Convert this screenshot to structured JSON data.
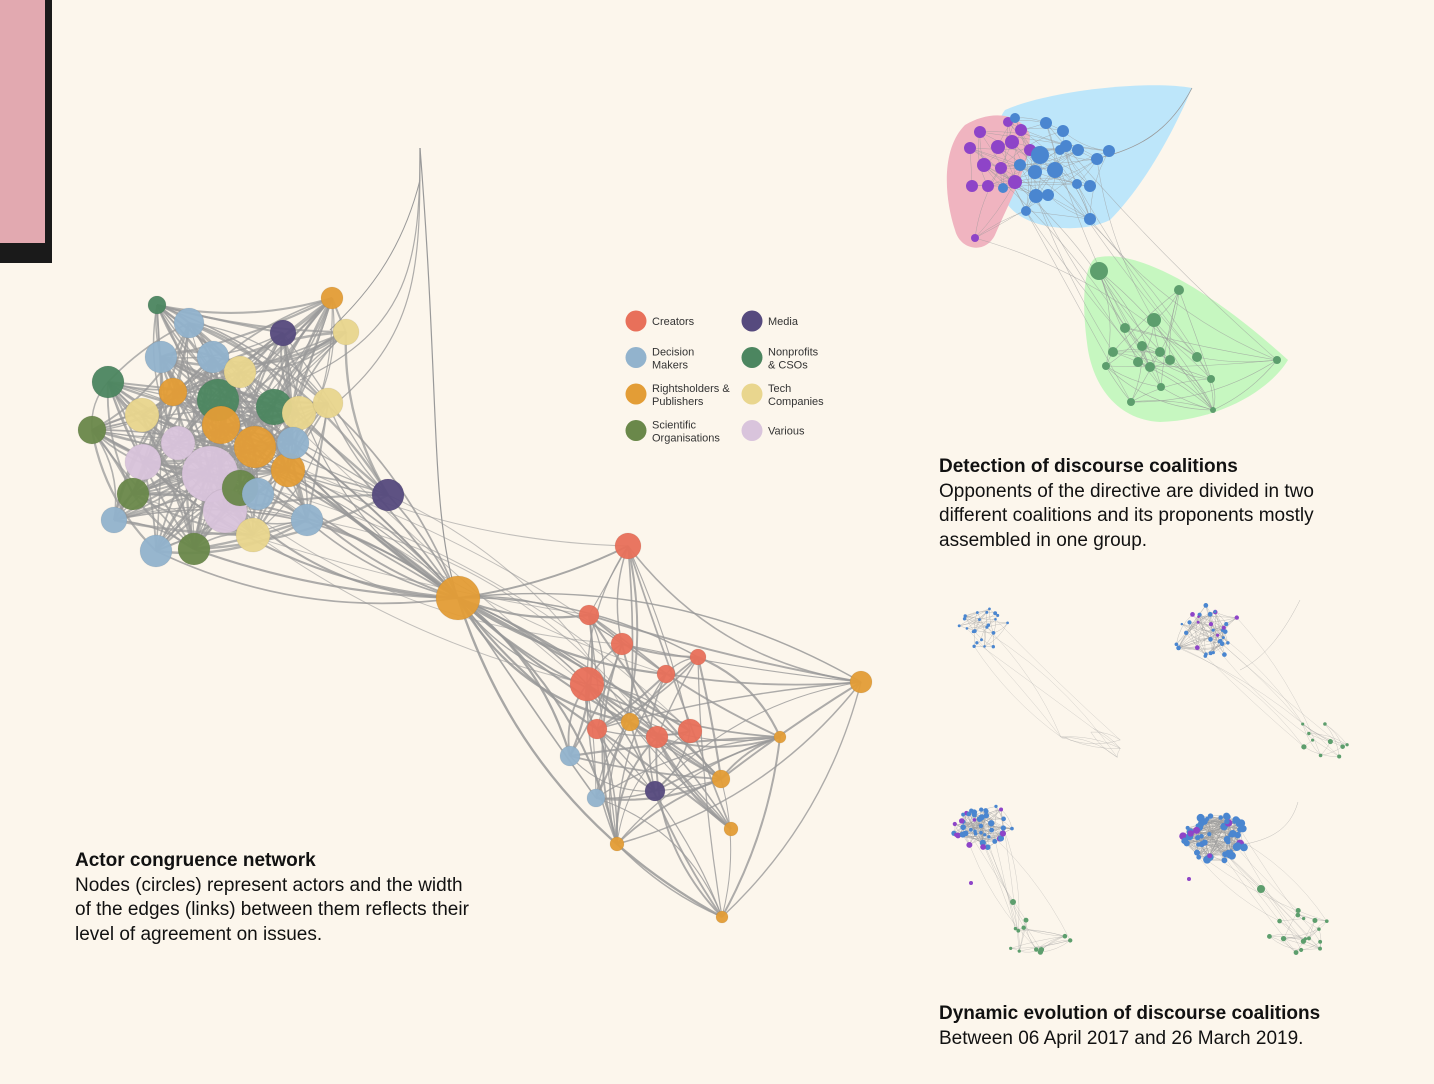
{
  "colors": {
    "background": "#fcf6ec",
    "tab": "#e2a9b0",
    "edge": "#999999",
    "creators": "#e8705a",
    "decision_makers": "#92b3cd",
    "rightsholders": "#e39d36",
    "scientific": "#6a884a",
    "media": "#564a7e",
    "nonprofits": "#4c8660",
    "tech": "#e9d68e",
    "various": "#d9c4dc",
    "hull_pink": "#f0b4c0",
    "hull_blue": "#bde6fa",
    "hull_green": "#c6f7c0",
    "node_purple": "#8e44c8",
    "node_blue": "#4a86d0",
    "node_green": "#5d9e6d"
  },
  "legend": [
    {
      "label": "Creators",
      "color": "#e8705a"
    },
    {
      "label": "Media",
      "color": "#564a7e"
    },
    {
      "label": "Decision\nMakers",
      "color": "#92b3cd"
    },
    {
      "label": "Nonprofits\n& CSOs",
      "color": "#4c8660"
    },
    {
      "label": "Rightsholders &\nPublishers",
      "color": "#e39d36"
    },
    {
      "label": "Tech\nCompanies",
      "color": "#e9d68e"
    },
    {
      "label": "Scientific\nOrganisations",
      "color": "#6a884a"
    },
    {
      "label": "Various",
      "color": "#d9c4dc"
    }
  ],
  "captions": {
    "actor_title": "Actor congruence network",
    "actor_body": "Nodes (circles) represent actors and the width of the edges (links) between them reflects their level of agreement on issues.",
    "coalitions_title": "Detection of discourse coalitions",
    "coalitions_body": "Opponents of the directive are divided in two different coalitions and its proponents mostly assembled in one group.",
    "dynamic_title": "Dynamic evolution of discourse coalitions",
    "dynamic_body": "Between 06 April 2017 and 26 March 2019."
  }
}
